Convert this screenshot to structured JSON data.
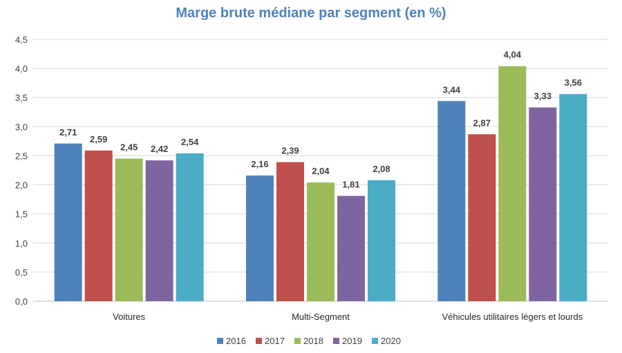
{
  "chart_data": {
    "type": "bar",
    "title": "Marge brute médiane par segment (en %)",
    "xlabel": "",
    "ylabel": "",
    "ylim": [
      0,
      4.5
    ],
    "yticks": [
      "0,0",
      "0,5",
      "1,0",
      "1,5",
      "2,0",
      "2,5",
      "3,0",
      "3,5",
      "4,0",
      "4,5"
    ],
    "grid": true,
    "legend_position": "bottom",
    "categories": [
      "Voitures",
      "Multi-Segment",
      "Véhicules utilitaires légers et lourds"
    ],
    "series": [
      {
        "name": "2016",
        "color": "#4f81bd",
        "values": [
          2.71,
          2.16,
          3.44
        ],
        "labels": [
          "2,71",
          "2,16",
          "3,44"
        ]
      },
      {
        "name": "2017",
        "color": "#c0504d",
        "values": [
          2.59,
          2.39,
          2.87
        ],
        "labels": [
          "2,59",
          "2,39",
          "2,87"
        ]
      },
      {
        "name": "2018",
        "color": "#9bbb59",
        "values": [
          2.45,
          2.04,
          4.04
        ],
        "labels": [
          "2,45",
          "2,04",
          "4,04"
        ]
      },
      {
        "name": "2019",
        "color": "#8064a2",
        "values": [
          2.42,
          1.81,
          3.33
        ],
        "labels": [
          "2,42",
          "1,81",
          "3,33"
        ]
      },
      {
        "name": "2020",
        "color": "#4bacc6",
        "values": [
          2.54,
          2.08,
          3.56
        ],
        "labels": [
          "2,54",
          "2,08",
          "3,56"
        ]
      }
    ],
    "title_color": "#4f81bd"
  }
}
